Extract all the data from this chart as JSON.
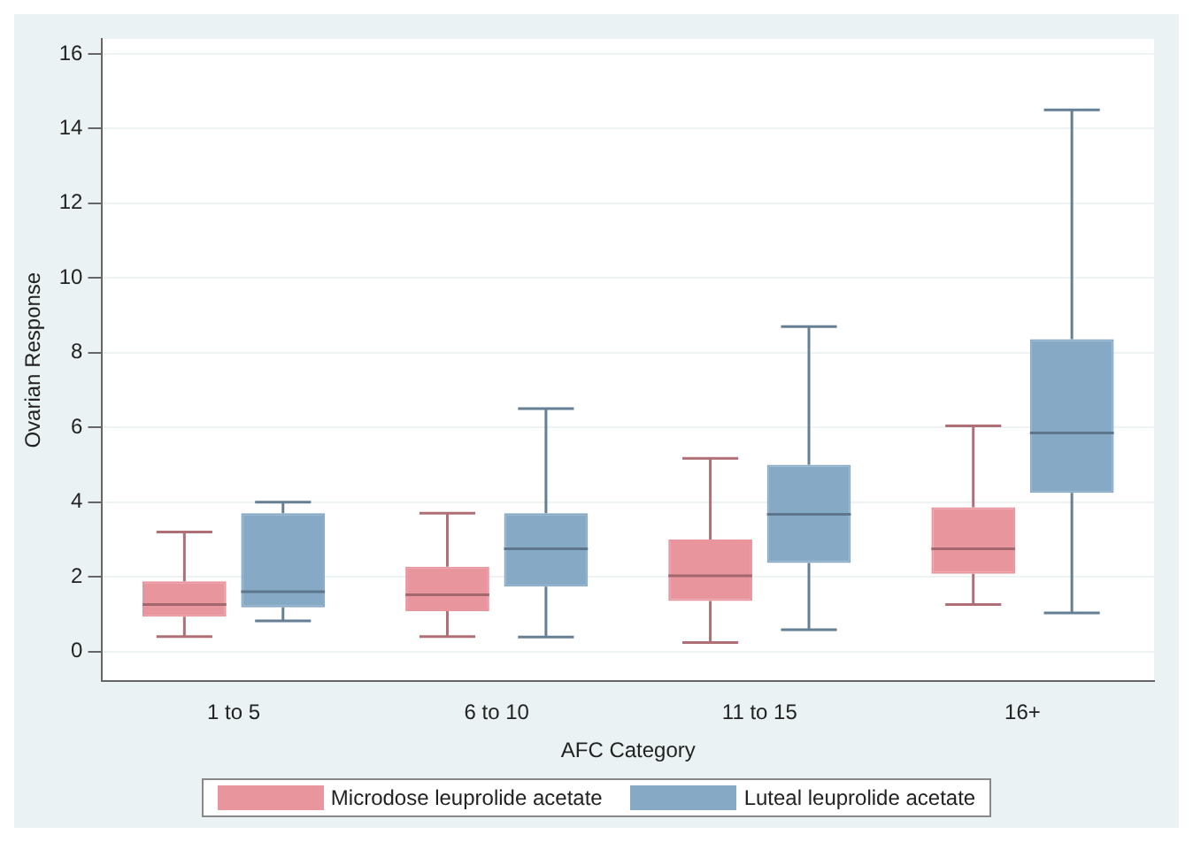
{
  "chart_data": {
    "type": "box",
    "xlabel": "AFC Category",
    "ylabel": "Ovarian Response",
    "categories": [
      "1 to 5",
      "6 to 10",
      "11 to 15",
      "16+"
    ],
    "series": [
      {
        "name": "Microdose leuprolide acetate",
        "color": "#e8959d",
        "boxes": [
          {
            "low": 0.4,
            "q1": 0.93,
            "median": 1.26,
            "q3": 1.88,
            "high": 3.2
          },
          {
            "low": 0.4,
            "q1": 1.08,
            "median": 1.52,
            "q3": 2.27,
            "high": 3.7
          },
          {
            "low": 0.24,
            "q1": 1.35,
            "median": 2.03,
            "q3": 3.0,
            "high": 5.17
          },
          {
            "low": 1.26,
            "q1": 2.08,
            "median": 2.75,
            "q3": 3.86,
            "high": 6.04
          }
        ]
      },
      {
        "name": "Luteal leuprolide acetate",
        "color": "#86a9c6",
        "boxes": [
          {
            "low": 0.82,
            "q1": 1.18,
            "median": 1.6,
            "q3": 3.7,
            "high": 4.0
          },
          {
            "low": 0.39,
            "q1": 1.74,
            "median": 2.75,
            "q3": 3.7,
            "high": 6.5
          },
          {
            "low": 0.58,
            "q1": 2.37,
            "median": 3.67,
            "q3": 5.0,
            "high": 8.7
          },
          {
            "low": 1.03,
            "q1": 4.25,
            "median": 5.85,
            "q3": 8.36,
            "high": 14.5
          }
        ]
      }
    ],
    "ylim": [
      -0.8,
      16.4
    ],
    "yticks": [
      0,
      2,
      4,
      6,
      8,
      10,
      12,
      14,
      16
    ],
    "grid": "y",
    "legend": "bottom"
  }
}
